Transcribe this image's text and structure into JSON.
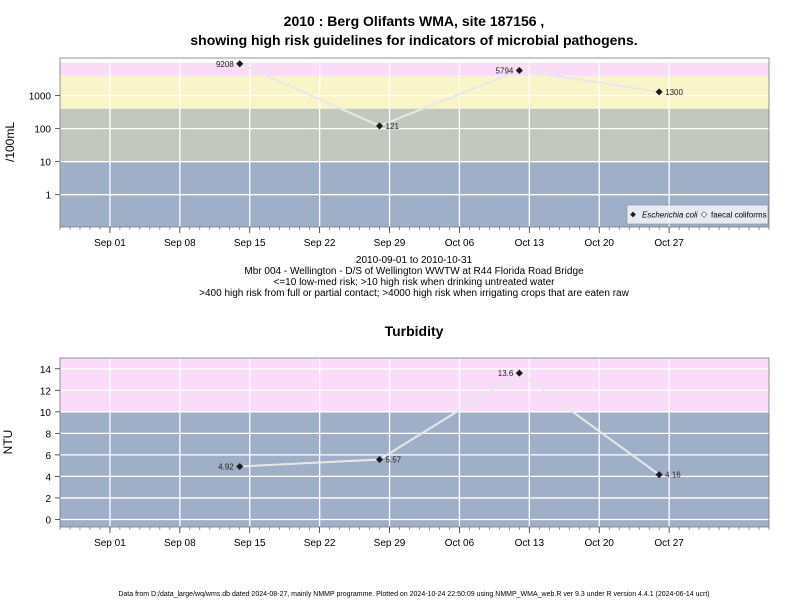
{
  "chart_data": [
    {
      "type": "line",
      "title_line1": "2010 : Berg Olifants WMA, site 187156 ,",
      "title_line2": "showing high risk guidelines for indicators of microbial pathogens.",
      "ylabel": "/100mL",
      "y_scale": "log10",
      "yticks": [
        1,
        10,
        100,
        1000
      ],
      "ytick_labels": [
        "1",
        "10",
        "100",
        "1000"
      ],
      "xlim": [
        "2010-08-27",
        "2010-11-06"
      ],
      "xticks": [
        "2010-09-01",
        "2010-09-08",
        "2010-09-15",
        "2010-09-22",
        "2010-09-29",
        "2010-10-06",
        "2010-10-13",
        "2010-10-20",
        "2010-10-27"
      ],
      "xtick_labels": [
        "Sep 01",
        "Sep 08",
        "Sep 15",
        "Sep 22",
        "Sep 29",
        "Oct 06",
        "Oct 13",
        "Oct 20",
        "Oct 27"
      ],
      "bands": [
        {
          "from": 4000,
          "to": 10000,
          "color": "#fadcfa"
        },
        {
          "from": 400,
          "to": 4000,
          "color": "#faf5c8"
        },
        {
          "from": 10,
          "to": 400,
          "color": "#c3c8be"
        },
        {
          "from": 0.1,
          "to": 10,
          "color": "#a0afc8"
        }
      ],
      "series": [
        {
          "name": "Escherichia coli",
          "x": [
            "2010-09-14",
            "2010-09-28",
            "2010-10-12",
            "2010-10-26"
          ],
          "y": [
            9208,
            121,
            5794,
            1300
          ],
          "labels": [
            "9208",
            "121",
            "5794",
            "1300"
          ]
        }
      ],
      "legend": {
        "position": "bottom-right",
        "items": [
          "Escherichia coli",
          "faecal coliforms"
        ]
      },
      "caption": [
        "2010-09-01 to 2010-10-31",
        "Mbr 004 - Wellington - D/S of Wellington WWTW at R44 Florida Road Bridge",
        "<=10 low-med risk; >10 high risk when drinking untreated water",
        ">400 high risk from full or partial contact; >4000 high risk when irrigating crops that are eaten raw"
      ]
    },
    {
      "type": "line",
      "title": "Turbidity",
      "ylabel": "NTU",
      "ylim": [
        -0.7,
        15
      ],
      "yticks": [
        0,
        2,
        4,
        6,
        8,
        10,
        12,
        14
      ],
      "ytick_labels": [
        "0",
        "2",
        "4",
        "6",
        "8",
        "10",
        "12",
        "14"
      ],
      "xlim": [
        "2010-08-27",
        "2010-11-06"
      ],
      "xticks": [
        "2010-09-01",
        "2010-09-08",
        "2010-09-15",
        "2010-09-22",
        "2010-09-29",
        "2010-10-06",
        "2010-10-13",
        "2010-10-20",
        "2010-10-27"
      ],
      "xtick_labels": [
        "Sep 01",
        "Sep 08",
        "Sep 15",
        "Sep 22",
        "Sep 29",
        "Oct 06",
        "Oct 13",
        "Oct 20",
        "Oct 27"
      ],
      "bands": [
        {
          "from": 10,
          "to": 15,
          "color": "#fadcfa"
        },
        {
          "from": -0.7,
          "to": 10,
          "color": "#a0afc8"
        }
      ],
      "series": [
        {
          "x": [
            "2010-09-14",
            "2010-09-28",
            "2010-10-12",
            "2010-10-26"
          ],
          "y": [
            4.92,
            5.57,
            13.6,
            4.16
          ],
          "labels": [
            "4.92",
            "5.57",
            "13.6",
            "4.16"
          ]
        }
      ]
    }
  ],
  "footer": "Data from D:/data_large/wq/wms.db dated 2024-08-27, mainly NMMP programme. Plotted on 2024-10-24 22:50:09 using NMMP_WMA_web.R ver 9.3 under R version 4.4.1 (2024-06-14 ucrt)"
}
